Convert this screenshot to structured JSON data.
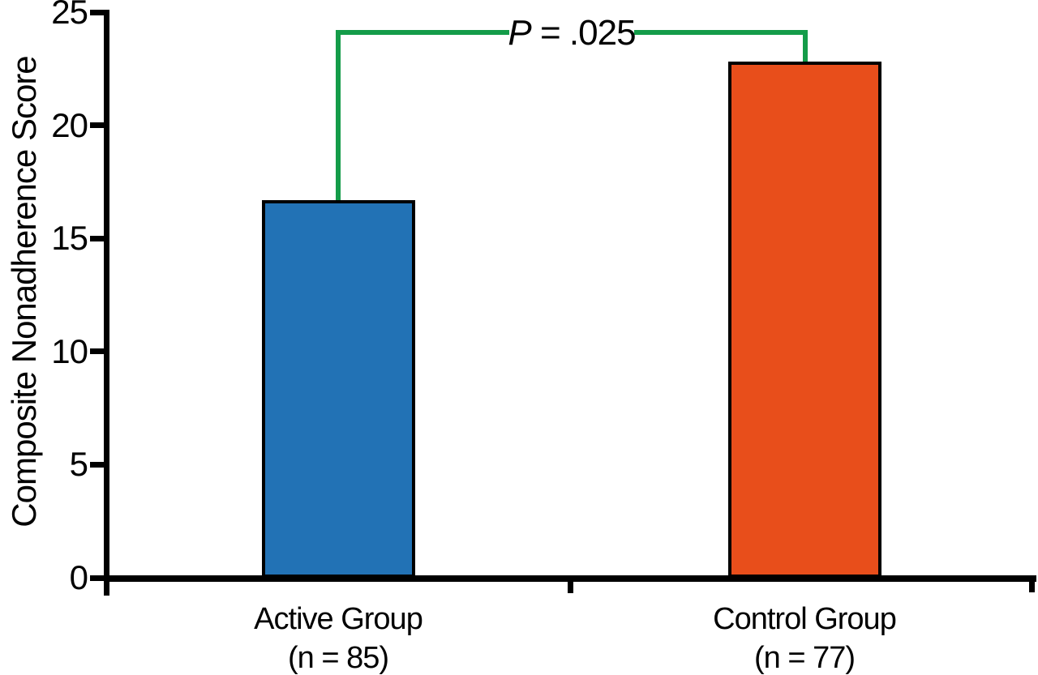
{
  "figure": {
    "background_color": "#ffffff",
    "text_color": "#000000"
  },
  "chart_data": {
    "type": "bar",
    "title": "",
    "xlabel": "",
    "ylabel": "Composite Nonadherence Score",
    "ylim": [
      0,
      25
    ],
    "yticks": [
      "0",
      "5",
      "10",
      "15",
      "20",
      "25"
    ],
    "grid": false,
    "legend_position": "none",
    "categories": [
      "Active Group",
      "Control Group"
    ],
    "category_sublabels": [
      "(n = 85)",
      "(n = 77)"
    ],
    "values": [
      16.7,
      22.8
    ],
    "bar_colors": [
      "#2272B5",
      "#E84E1B"
    ],
    "bar_border_color": "#000000",
    "axis_color": "#000000",
    "annotation": {
      "p_label": "P",
      "p_value": " = .025",
      "bracket_color": "#149C49"
    }
  }
}
